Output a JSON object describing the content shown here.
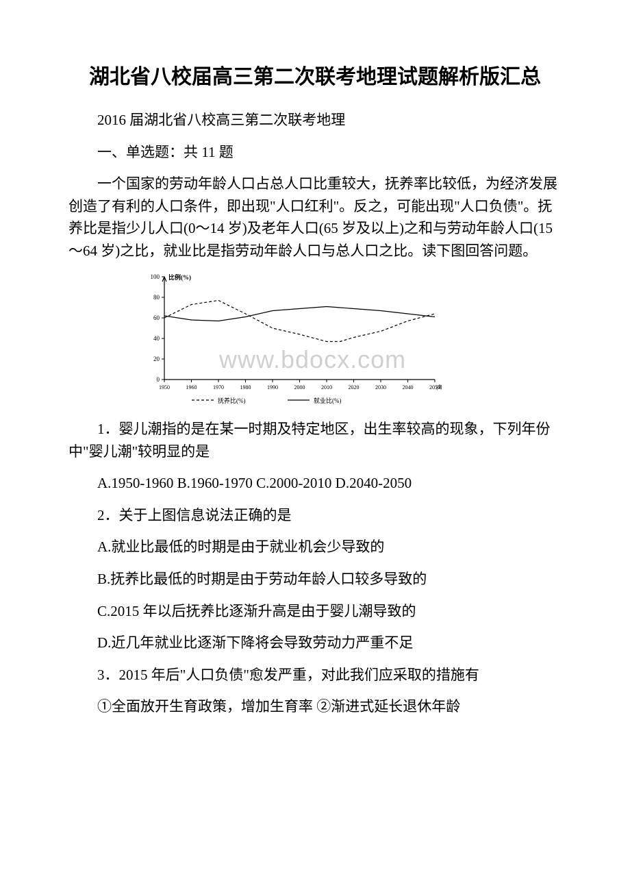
{
  "title": "湖北省八校届高三第二次联考地理试题解析版汇总",
  "intro_line": "2016 届湖北省八校高三第二次联考地理",
  "section_heading": "一、单选题：共 11 题",
  "passage": "一个国家的劳动年龄人口占总人口比重较大，抚养率比较低，为经济发展创造了有利的人口条件，即出现\"人口红利\"。反之，可能出现\"人口负债\"。抚养比是指少儿人口(0～14 岁)及老年人口(65 岁及以上)之和与劳动年龄人口(15～64 岁)之比，就业比是指劳动年龄人口与总人口之比。读下图回答问题。",
  "chart": {
    "type": "line",
    "x_label_years": [
      "1950",
      "1960",
      "1970",
      "1980",
      "1990",
      "2000",
      "2010",
      "2020",
      "2030",
      "2040",
      "2050"
    ],
    "x_unit_label": "(年)",
    "y_label": "比例(%)",
    "ylim": [
      0,
      100
    ],
    "ytick_step": 20,
    "yticks": [
      0,
      20,
      40,
      60,
      80,
      100
    ],
    "axis_color": "#000000",
    "grid": false,
    "background_color": "#ffffff",
    "x_axis_fontsize": 8,
    "y_axis_fontsize": 9,
    "legend_fontsize": 9,
    "series": [
      {
        "name": "抚养比(%)",
        "dash": "4,3",
        "color": "#000000",
        "line_width": 1.2,
        "years": [
          1950,
          1960,
          1970,
          1980,
          1990,
          2000,
          2010,
          2015,
          2020,
          2030,
          2040,
          2050
        ],
        "values": [
          60,
          73,
          77,
          64,
          50,
          44,
          37,
          37,
          41,
          47,
          57,
          64
        ]
      },
      {
        "name": "就业比(%)",
        "dash": "none",
        "color": "#000000",
        "line_width": 1.2,
        "years": [
          1950,
          1960,
          1970,
          1980,
          1990,
          2000,
          2010,
          2015,
          2020,
          2030,
          2040,
          2050
        ],
        "values": [
          62,
          58,
          57,
          61,
          67,
          69,
          71,
          70,
          69,
          67,
          64,
          61
        ]
      }
    ],
    "legend_items": [
      "抚养比(%)",
      "就业比(%)"
    ]
  },
  "q1_stem": "1．婴儿潮指的是在某一时期及特定地区，出生率较高的现象，下列年份中\"婴儿潮\"较明显的是",
  "q1_options": "A.1950-1960 B.1960-1970 C.2000-2010 D.2040-2050",
  "q2_stem": "2．关于上图信息说法正确的是",
  "q2_a": "A.就业比最低的时期是由于就业机会少导致的",
  "q2_b": "B.抚养比最低的时期是由于劳动年龄人口较多导致的",
  "q2_c": "C.2015 年以后抚养比逐渐升高是由于婴儿潮导致的",
  "q2_d": "D.近几年就业比逐渐下降将会导致劳动力严重不足",
  "q3_stem": "3．2015 年后\"人口负债\"愈发严重，对此我们应采取的措施有",
  "q3_opts": "①全面放开生育政策，增加生育率  ②渐进式延长退休年龄",
  "watermark": "www.bdocx.com"
}
